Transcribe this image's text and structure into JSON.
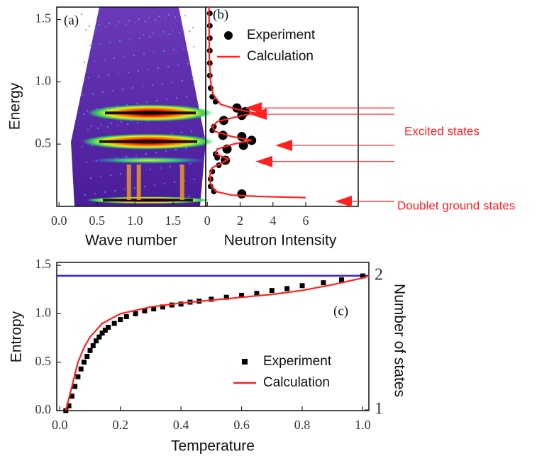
{
  "chart_data": [
    {
      "type": "heatmap",
      "label": "(a)",
      "xlabel": "Wave number",
      "ylabel": "Energy",
      "xlim": [
        -0.03,
        1.93
      ],
      "ylim": [
        0,
        1.6
      ],
      "xticks": [
        {
          "value": 0,
          "label": "0.0"
        },
        0.5,
        {
          "value": 1,
          "label": "1.0"
        },
        1.5
      ],
      "yticks": [
        0.5,
        {
          "value": 1,
          "label": "1.0"
        },
        1.5
      ],
      "band_energies": [
        0.05,
        0.37,
        0.52,
        0.75
      ]
    },
    {
      "type": "scatter_line",
      "label": "(b)",
      "xlabel": "Neutron Intensity",
      "xlim": [
        -0.1,
        9.2
      ],
      "ylim": [
        0,
        1.6
      ],
      "xticks": [
        0,
        2,
        4,
        6
      ],
      "legend": "upper right",
      "series": [
        {
          "name": "Experiment",
          "color": "#000000",
          "marker": "circle",
          "x": [
            0.15,
            0.15,
            0.15,
            0.15,
            0.15,
            0.15,
            0.2,
            0.3,
            0.5,
            1.8,
            2.3,
            2.1,
            1.0,
            0.4,
            0.3,
            0.95,
            2.1,
            2.7,
            2.2,
            1.2,
            0.5,
            0.6,
            1.1,
            0.7,
            0.3,
            0.2,
            0.2,
            0.4,
            2.1
          ],
          "y": [
            1.55,
            1.45,
            1.35,
            1.25,
            1.15,
            1.05,
            0.95,
            0.88,
            0.84,
            0.79,
            0.76,
            0.73,
            0.69,
            0.64,
            0.61,
            0.57,
            0.56,
            0.53,
            0.49,
            0.46,
            0.42,
            0.39,
            0.37,
            0.33,
            0.28,
            0.22,
            0.16,
            0.12,
            0.1
          ]
        },
        {
          "name": "Calculation",
          "color": "#ff2020",
          "marker": "line",
          "x": [
            0.1,
            0.12,
            0.2,
            0.35,
            0.8,
            1.8,
            2.9,
            1.8,
            0.6,
            0.3,
            0.5,
            1.5,
            2.7,
            1.6,
            0.6,
            0.5,
            1.3,
            0.9,
            0.3,
            0.15,
            0.2,
            0.5,
            1.5,
            3.0,
            6.0
          ],
          "y": [
            1.6,
            1.2,
            1.0,
            0.9,
            0.82,
            0.78,
            0.75,
            0.72,
            0.68,
            0.64,
            0.6,
            0.56,
            0.53,
            0.5,
            0.46,
            0.42,
            0.38,
            0.35,
            0.31,
            0.25,
            0.18,
            0.12,
            0.09,
            0.08,
            0.07
          ]
        }
      ],
      "annotations": [
        {
          "text": "Excited states",
          "color": "#ff2020",
          "levels": [
            0.79,
            0.74,
            0.49,
            0.36
          ]
        },
        {
          "text": "Doublet ground states",
          "color": "#ff2020",
          "levels": [
            0.04
          ]
        }
      ]
    },
    {
      "type": "line",
      "label": "(c)",
      "xlabel": "Temperature",
      "ylabel": "Entropy",
      "y2label": "Number of states",
      "y2color": "#5522ee",
      "xlim": [
        -0.01,
        1.02
      ],
      "ylim": [
        0,
        1.53
      ],
      "y2lim": [
        0.995,
        2.1
      ],
      "xticks": [
        {
          "value": 0,
          "label": "0.0"
        },
        0.2,
        0.4,
        0.6,
        0.8,
        {
          "value": 1,
          "label": "1.0"
        }
      ],
      "yticks": [
        {
          "value": 0,
          "label": "0.0"
        },
        0.5,
        {
          "value": 1,
          "label": "1.0"
        },
        1.5
      ],
      "y2ticks": [
        1,
        2
      ],
      "reference_line": {
        "axis": "y2",
        "value": 2,
        "color": "#3a22dd"
      },
      "legend": "center right",
      "series": [
        {
          "name": "Experiment",
          "color": "#000000",
          "marker": "square",
          "x": [
            0.02,
            0.03,
            0.04,
            0.05,
            0.06,
            0.07,
            0.08,
            0.09,
            0.1,
            0.11,
            0.12,
            0.13,
            0.14,
            0.15,
            0.16,
            0.18,
            0.2,
            0.22,
            0.25,
            0.28,
            0.31,
            0.34,
            0.37,
            0.4,
            0.43,
            0.46,
            0.5,
            0.55,
            0.6,
            0.65,
            0.7,
            0.75,
            0.8,
            0.87,
            0.93,
            1.0
          ],
          "y": [
            0,
            0.05,
            0.15,
            0.25,
            0.35,
            0.43,
            0.5,
            0.56,
            0.62,
            0.67,
            0.72,
            0.76,
            0.8,
            0.83,
            0.86,
            0.9,
            0.94,
            0.97,
            1.0,
            1.03,
            1.05,
            1.07,
            1.09,
            1.1,
            1.12,
            1.13,
            1.15,
            1.17,
            1.19,
            1.21,
            1.24,
            1.26,
            1.29,
            1.32,
            1.35,
            1.39
          ]
        },
        {
          "name": "Calculation",
          "color": "#ff2020",
          "marker": "line",
          "x": [
            0.02,
            0.04,
            0.06,
            0.08,
            0.1,
            0.14,
            0.2,
            0.3,
            0.4,
            0.5,
            0.6,
            0.7,
            0.8,
            0.9,
            1.0,
            1.02
          ],
          "y": [
            0,
            0.25,
            0.5,
            0.65,
            0.76,
            0.9,
            1.0,
            1.07,
            1.11,
            1.14,
            1.17,
            1.2,
            1.24,
            1.3,
            1.37,
            1.39
          ]
        }
      ]
    }
  ]
}
